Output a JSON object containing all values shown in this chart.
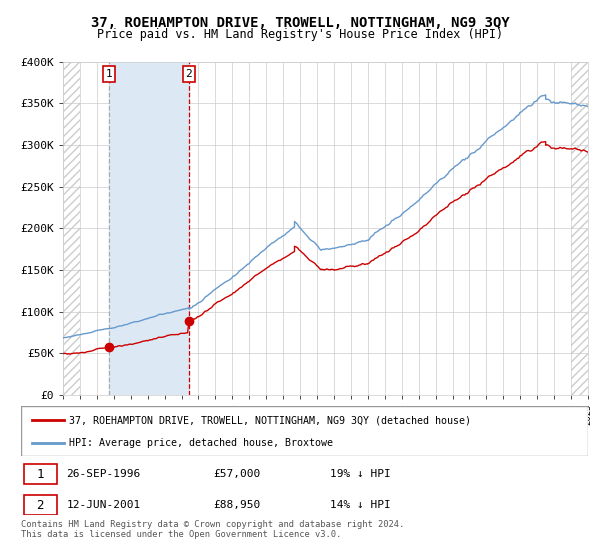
{
  "title": "37, ROEHAMPTON DRIVE, TROWELL, NOTTINGHAM, NG9 3QY",
  "subtitle": "Price paid vs. HM Land Registry's House Price Index (HPI)",
  "legend_entry1": "37, ROEHAMPTON DRIVE, TROWELL, NOTTINGHAM, NG9 3QY (detached house)",
  "legend_entry2": "HPI: Average price, detached house, Broxtowe",
  "annotation1_year": 1996.73,
  "annotation1_value": 57000,
  "annotation1_date": "26-SEP-1996",
  "annotation1_price": "£57,000",
  "annotation1_hpi": "19% ↓ HPI",
  "annotation2_year": 2001.44,
  "annotation2_value": 88950,
  "annotation2_date": "12-JUN-2001",
  "annotation2_price": "£88,950",
  "annotation2_hpi": "14% ↓ HPI",
  "xmin": 1994,
  "xmax": 2025,
  "ymin": 0,
  "ymax": 400000,
  "yticks": [
    0,
    50000,
    100000,
    150000,
    200000,
    250000,
    300000,
    350000,
    400000
  ],
  "color_price": "#cc0000",
  "color_hpi": "#6699cc",
  "color_shade": "#dce9f5",
  "color_vline1": "#aaaaaa",
  "color_vline2": "#cc0000",
  "color_hatch": "#cccccc",
  "color_grid": "#cccccc",
  "footnote": "Contains HM Land Registry data © Crown copyright and database right 2024.\nThis data is licensed under the Open Government Licence v3.0."
}
